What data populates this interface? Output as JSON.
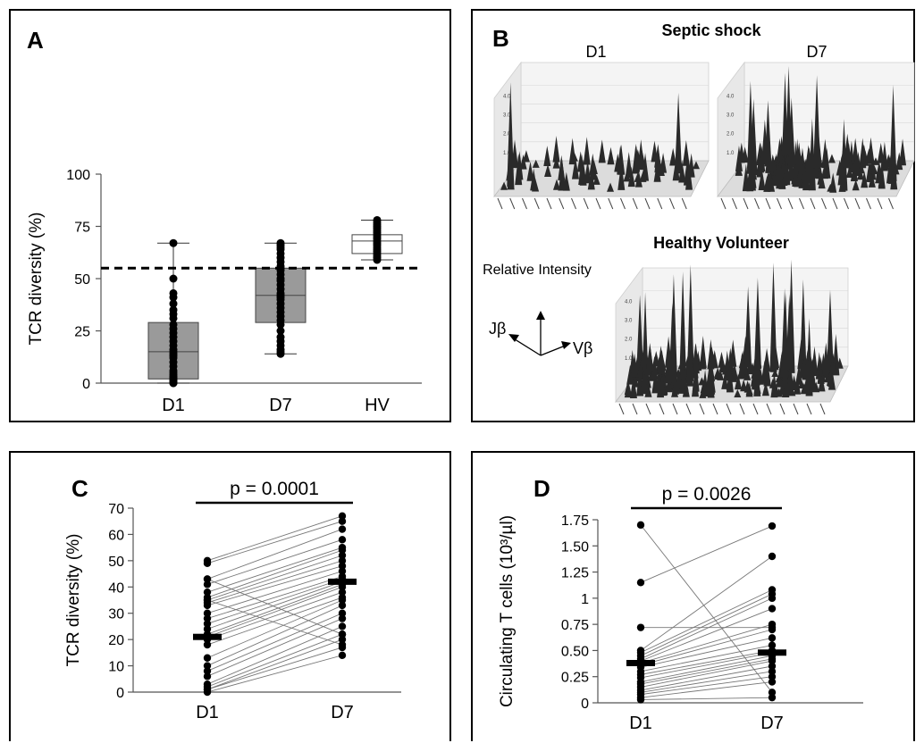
{
  "chart_data": [
    {
      "panel": "A",
      "type": "box",
      "ylabel": "TCR diversity (%)",
      "ylim": [
        0,
        100
      ],
      "yticks": [
        "0",
        "25",
        "50",
        "75",
        "100"
      ],
      "categories": [
        "D1",
        "D7",
        "HV"
      ],
      "reference_line": 55,
      "boxes": [
        {
          "category": "D1",
          "min": 0,
          "q1": 2,
          "median": 15,
          "q3": 29,
          "max": 67,
          "color": "#9a9a9a",
          "points": [
            0,
            0,
            1,
            1,
            2,
            2,
            3,
            3,
            4,
            5,
            6,
            8,
            10,
            12,
            13,
            14,
            15,
            16,
            18,
            20,
            22,
            24,
            26,
            28,
            31,
            33,
            35,
            38,
            41,
            43,
            50,
            67
          ]
        },
        {
          "category": "D7",
          "min": 14,
          "q1": 29,
          "median": 42,
          "q3": 55,
          "max": 67,
          "color": "#9a9a9a",
          "points": [
            14,
            15,
            16,
            18,
            20,
            22,
            25,
            28,
            30,
            32,
            34,
            36,
            38,
            40,
            41,
            42,
            43,
            45,
            47,
            49,
            50,
            52,
            54,
            55,
            56,
            58,
            60,
            62,
            64,
            65,
            66,
            67
          ]
        },
        {
          "category": "HV",
          "min": 59,
          "q1": 62,
          "median": 68,
          "q3": 71,
          "max": 78,
          "color": "#ffffff",
          "points": [
            59,
            60,
            61,
            62,
            63,
            64,
            65,
            66,
            67,
            68,
            69,
            70,
            71,
            72,
            73,
            74,
            75,
            76,
            77,
            78
          ]
        }
      ]
    },
    {
      "panel": "B",
      "type": "3d-spectratype",
      "title": "Septic shock",
      "subplots": [
        "D1",
        "D7"
      ],
      "hv_title": "Healthy Volunteer",
      "axis_legend": {
        "z": "Relative Intensity",
        "left": "Jβ",
        "right": "Vβ"
      }
    },
    {
      "panel": "C",
      "type": "paired-line",
      "ylabel": "TCR diversity (%)",
      "ylim": [
        0,
        70
      ],
      "yticks": [
        "0",
        "10",
        "20",
        "30",
        "40",
        "50",
        "60",
        "70"
      ],
      "categories": [
        "D1",
        "D7"
      ],
      "p_value": "p = 0.0001",
      "medians": [
        21,
        42
      ],
      "pairs": [
        [
          50,
          67
        ],
        [
          49,
          65
        ],
        [
          43,
          62
        ],
        [
          41,
          58
        ],
        [
          38,
          55
        ],
        [
          36,
          54
        ],
        [
          35,
          52
        ],
        [
          34,
          50
        ],
        [
          33,
          48
        ],
        [
          30,
          46
        ],
        [
          28,
          44
        ],
        [
          26,
          43
        ],
        [
          24,
          42
        ],
        [
          22,
          41
        ],
        [
          21,
          40
        ],
        [
          20,
          38
        ],
        [
          18,
          36
        ],
        [
          13,
          35
        ],
        [
          10,
          33
        ],
        [
          8,
          30
        ],
        [
          6,
          28
        ],
        [
          3,
          25
        ],
        [
          2,
          22
        ],
        [
          1,
          20
        ],
        [
          1,
          17
        ],
        [
          0,
          14
        ],
        [
          35,
          18
        ],
        [
          43,
          22
        ]
      ]
    },
    {
      "panel": "D",
      "type": "paired-line",
      "ylabel": "Circulating T cells (10³/µl)",
      "ylim": [
        0,
        1.75
      ],
      "yticks": [
        "0",
        "0.25",
        "0.50",
        "0.75",
        "1",
        "1.25",
        "1.50",
        "1.75"
      ],
      "categories": [
        "D1",
        "D7"
      ],
      "p_value": "p = 0.0026",
      "medians": [
        0.38,
        0.48
      ],
      "pairs": [
        [
          1.7,
          0.1
        ],
        [
          1.15,
          1.69
        ],
        [
          0.72,
          0.72
        ],
        [
          0.5,
          1.4
        ],
        [
          0.48,
          1.08
        ],
        [
          0.45,
          1.04
        ],
        [
          0.42,
          1.0
        ],
        [
          0.4,
          0.9
        ],
        [
          0.38,
          0.75
        ],
        [
          0.36,
          0.7
        ],
        [
          0.34,
          0.62
        ],
        [
          0.3,
          0.55
        ],
        [
          0.27,
          0.5
        ],
        [
          0.24,
          0.48
        ],
        [
          0.2,
          0.45
        ],
        [
          0.18,
          0.42
        ],
        [
          0.15,
          0.4
        ],
        [
          0.12,
          0.35
        ],
        [
          0.1,
          0.3
        ],
        [
          0.08,
          0.25
        ],
        [
          0.05,
          0.2
        ],
        [
          0.03,
          0.05
        ]
      ]
    }
  ]
}
